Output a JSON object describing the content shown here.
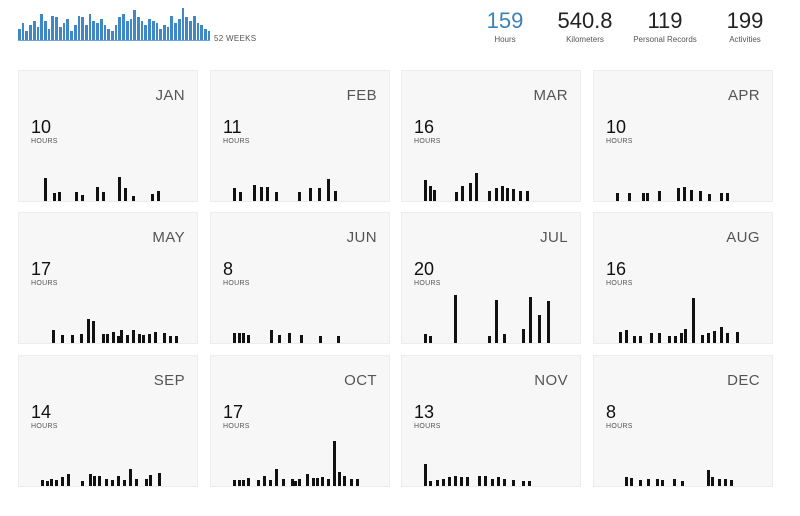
{
  "weekly": {
    "label": "52 WEEKS",
    "bar_color": "#3f87c7",
    "values": [
      6,
      9,
      5,
      8,
      10,
      7,
      14,
      10,
      6,
      13,
      12,
      7,
      9,
      11,
      5,
      8,
      13,
      12,
      8,
      14,
      10,
      9,
      11,
      8,
      6,
      5,
      8,
      12,
      14,
      10,
      11,
      16,
      12,
      10,
      8,
      11,
      10,
      9,
      6,
      8,
      7,
      13,
      9,
      11,
      17,
      12,
      10,
      13,
      9,
      8,
      6,
      5
    ]
  },
  "stats": [
    {
      "value": "159",
      "label": "Hours",
      "accent": true
    },
    {
      "value": "540.8",
      "label": "Kilometers",
      "accent": false
    },
    {
      "value": "119",
      "label": "Personal Records",
      "accent": false
    },
    {
      "value": "199",
      "label": "Activities",
      "accent": false
    }
  ],
  "months": [
    {
      "name": "JAN",
      "hours": "10",
      "unit": "HOURS",
      "bars": [
        [
          0.09,
          0.45
        ],
        [
          0.15,
          0.16
        ],
        [
          0.18,
          0.18
        ],
        [
          0.3,
          0.18
        ],
        [
          0.34,
          0.12
        ],
        [
          0.44,
          0.28
        ],
        [
          0.48,
          0.17
        ],
        [
          0.59,
          0.48
        ],
        [
          0.63,
          0.25
        ],
        [
          0.68,
          0.1
        ],
        [
          0.81,
          0.14
        ],
        [
          0.85,
          0.2
        ]
      ]
    },
    {
      "name": "FEB",
      "hours": "11",
      "unit": "HOURS",
      "bars": [
        [
          0.07,
          0.25
        ],
        [
          0.11,
          0.17
        ],
        [
          0.2,
          0.32
        ],
        [
          0.25,
          0.28
        ],
        [
          0.29,
          0.27
        ],
        [
          0.35,
          0.18
        ],
        [
          0.51,
          0.18
        ],
        [
          0.58,
          0.25
        ],
        [
          0.64,
          0.25
        ],
        [
          0.7,
          0.43
        ],
        [
          0.75,
          0.2
        ]
      ]
    },
    {
      "name": "MAR",
      "hours": "16",
      "unit": "HOURS",
      "bars": [
        [
          0.07,
          0.42
        ],
        [
          0.1,
          0.3
        ],
        [
          0.13,
          0.22
        ],
        [
          0.28,
          0.18
        ],
        [
          0.32,
          0.3
        ],
        [
          0.37,
          0.36
        ],
        [
          0.41,
          0.56
        ],
        [
          0.5,
          0.2
        ],
        [
          0.55,
          0.26
        ],
        [
          0.59,
          0.3
        ],
        [
          0.62,
          0.25
        ],
        [
          0.66,
          0.24
        ],
        [
          0.71,
          0.2
        ],
        [
          0.76,
          0.2
        ]
      ]
    },
    {
      "name": "APR",
      "hours": "10",
      "unit": "HOURS",
      "bars": [
        [
          0.07,
          0.16
        ],
        [
          0.15,
          0.16
        ],
        [
          0.24,
          0.16
        ],
        [
          0.27,
          0.16
        ],
        [
          0.35,
          0.2
        ],
        [
          0.48,
          0.26
        ],
        [
          0.52,
          0.28
        ],
        [
          0.57,
          0.22
        ],
        [
          0.63,
          0.2
        ],
        [
          0.69,
          0.14
        ],
        [
          0.77,
          0.16
        ],
        [
          0.81,
          0.16
        ]
      ]
    },
    {
      "name": "MAY",
      "hours": "17",
      "unit": "HOURS",
      "bars": [
        [
          0.14,
          0.26
        ],
        [
          0.2,
          0.16
        ],
        [
          0.27,
          0.16
        ],
        [
          0.33,
          0.18
        ],
        [
          0.38,
          0.48
        ],
        [
          0.41,
          0.44
        ],
        [
          0.48,
          0.18
        ],
        [
          0.51,
          0.18
        ],
        [
          0.55,
          0.22
        ],
        [
          0.58,
          0.14
        ],
        [
          0.6,
          0.26
        ],
        [
          0.64,
          0.16
        ],
        [
          0.68,
          0.26
        ],
        [
          0.72,
          0.18
        ],
        [
          0.75,
          0.16
        ],
        [
          0.79,
          0.18
        ],
        [
          0.83,
          0.22
        ],
        [
          0.89,
          0.2
        ],
        [
          0.93,
          0.14
        ],
        [
          0.97,
          0.14
        ]
      ]
    },
    {
      "name": "JUN",
      "hours": "8",
      "unit": "HOURS",
      "bars": [
        [
          0.07,
          0.2
        ],
        [
          0.1,
          0.2
        ],
        [
          0.13,
          0.2
        ],
        [
          0.16,
          0.16
        ],
        [
          0.32,
          0.25
        ],
        [
          0.37,
          0.16
        ],
        [
          0.44,
          0.2
        ],
        [
          0.52,
          0.16
        ],
        [
          0.65,
          0.14
        ],
        [
          0.77,
          0.14
        ]
      ]
    },
    {
      "name": "JUL",
      "hours": "20",
      "unit": "HOURS",
      "bars": [
        [
          0.07,
          0.18
        ],
        [
          0.1,
          0.14
        ],
        [
          0.27,
          0.96
        ],
        [
          0.5,
          0.14
        ],
        [
          0.55,
          0.86
        ],
        [
          0.6,
          0.18
        ],
        [
          0.73,
          0.28
        ],
        [
          0.78,
          0.92
        ],
        [
          0.84,
          0.56
        ],
        [
          0.9,
          0.84
        ]
      ]
    },
    {
      "name": "AUG",
      "hours": "16",
      "unit": "HOURS",
      "bars": [
        [
          0.09,
          0.22
        ],
        [
          0.13,
          0.26
        ],
        [
          0.18,
          0.14
        ],
        [
          0.22,
          0.14
        ],
        [
          0.3,
          0.2
        ],
        [
          0.35,
          0.2
        ],
        [
          0.42,
          0.14
        ],
        [
          0.46,
          0.14
        ],
        [
          0.5,
          0.2
        ],
        [
          0.53,
          0.28
        ],
        [
          0.58,
          0.9
        ],
        [
          0.64,
          0.16
        ],
        [
          0.68,
          0.2
        ],
        [
          0.72,
          0.24
        ],
        [
          0.77,
          0.32
        ],
        [
          0.81,
          0.2
        ],
        [
          0.88,
          0.22
        ]
      ]
    },
    {
      "name": "SEP",
      "hours": "14",
      "unit": "HOURS",
      "bars": [
        [
          0.07,
          0.12
        ],
        [
          0.1,
          0.1
        ],
        [
          0.13,
          0.14
        ],
        [
          0.16,
          0.12
        ],
        [
          0.2,
          0.18
        ],
        [
          0.24,
          0.24
        ],
        [
          0.34,
          0.1
        ],
        [
          0.39,
          0.24
        ],
        [
          0.42,
          0.2
        ],
        [
          0.45,
          0.2
        ],
        [
          0.5,
          0.14
        ],
        [
          0.54,
          0.12
        ],
        [
          0.58,
          0.2
        ],
        [
          0.62,
          0.12
        ],
        [
          0.66,
          0.34
        ],
        [
          0.7,
          0.14
        ],
        [
          0.77,
          0.14
        ],
        [
          0.8,
          0.22
        ],
        [
          0.86,
          0.26
        ]
      ]
    },
    {
      "name": "OCT",
      "hours": "17",
      "unit": "HOURS",
      "bars": [
        [
          0.07,
          0.12
        ],
        [
          0.1,
          0.12
        ],
        [
          0.13,
          0.12
        ],
        [
          0.16,
          0.16
        ],
        [
          0.23,
          0.12
        ],
        [
          0.27,
          0.2
        ],
        [
          0.31,
          0.12
        ],
        [
          0.35,
          0.34
        ],
        [
          0.4,
          0.14
        ],
        [
          0.46,
          0.14
        ],
        [
          0.48,
          0.1
        ],
        [
          0.51,
          0.14
        ],
        [
          0.56,
          0.24
        ],
        [
          0.6,
          0.16
        ],
        [
          0.63,
          0.16
        ],
        [
          0.66,
          0.18
        ],
        [
          0.7,
          0.14
        ],
        [
          0.74,
          0.9
        ],
        [
          0.78,
          0.28
        ],
        [
          0.81,
          0.2
        ],
        [
          0.86,
          0.14
        ],
        [
          0.9,
          0.14
        ]
      ]
    },
    {
      "name": "NOV",
      "hours": "13",
      "unit": "HOURS",
      "bars": [
        [
          0.07,
          0.44
        ],
        [
          0.1,
          0.1
        ],
        [
          0.15,
          0.12
        ],
        [
          0.19,
          0.14
        ],
        [
          0.23,
          0.18
        ],
        [
          0.27,
          0.2
        ],
        [
          0.31,
          0.18
        ],
        [
          0.35,
          0.18
        ],
        [
          0.43,
          0.2
        ],
        [
          0.47,
          0.2
        ],
        [
          0.52,
          0.14
        ],
        [
          0.56,
          0.18
        ],
        [
          0.6,
          0.14
        ],
        [
          0.66,
          0.12
        ],
        [
          0.73,
          0.1
        ],
        [
          0.77,
          0.1
        ]
      ]
    },
    {
      "name": "DEC",
      "hours": "8",
      "unit": "HOURS",
      "bars": [
        [
          0.13,
          0.18
        ],
        [
          0.16,
          0.16
        ],
        [
          0.22,
          0.12
        ],
        [
          0.28,
          0.14
        ],
        [
          0.34,
          0.14
        ],
        [
          0.37,
          0.12
        ],
        [
          0.45,
          0.14
        ],
        [
          0.51,
          0.1
        ],
        [
          0.68,
          0.32
        ],
        [
          0.71,
          0.18
        ],
        [
          0.76,
          0.14
        ],
        [
          0.8,
          0.14
        ],
        [
          0.84,
          0.12
        ]
      ]
    }
  ]
}
